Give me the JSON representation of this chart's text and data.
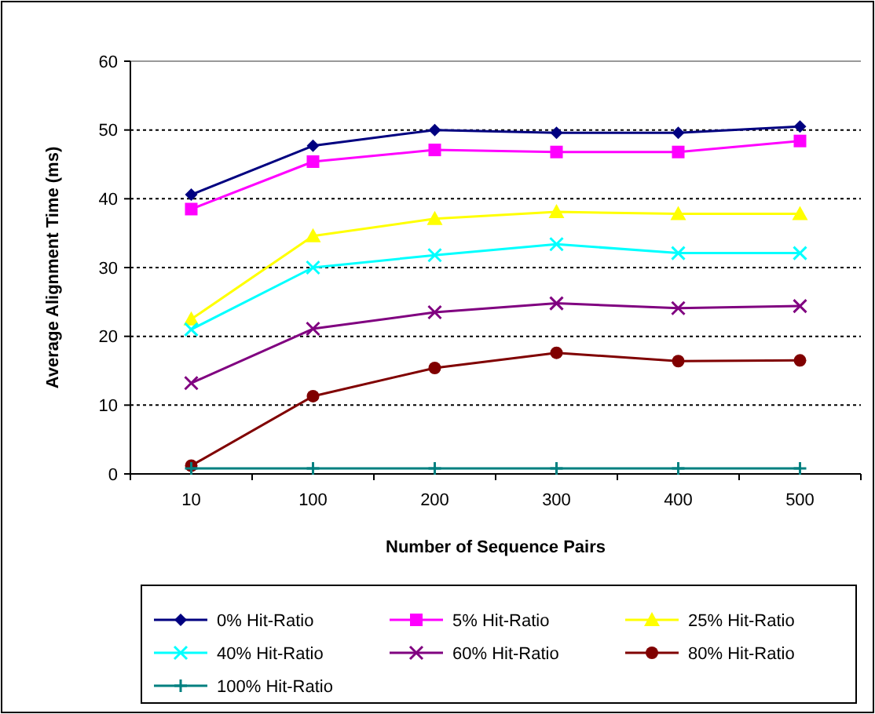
{
  "chart_data": {
    "type": "line",
    "xlabel": "Number of Sequence Pairs",
    "ylabel": "Average Alignment Time (ms)",
    "categories": [
      "10",
      "100",
      "200",
      "300",
      "400",
      "500"
    ],
    "ylim": [
      0,
      60
    ],
    "yticks": [
      0,
      10,
      20,
      30,
      40,
      50,
      60
    ],
    "grid": "y",
    "legend": "bottom",
    "series": [
      {
        "name": "0% Hit-Ratio",
        "color": "#000080",
        "marker": "diamond",
        "values": [
          40.6,
          47.7,
          50.0,
          49.6,
          49.6,
          50.5
        ]
      },
      {
        "name": "5% Hit-Ratio",
        "color": "#ff00ff",
        "marker": "square",
        "values": [
          38.5,
          45.4,
          47.1,
          46.8,
          46.8,
          48.4
        ]
      },
      {
        "name": "25% Hit-Ratio",
        "color": "#ffff00",
        "marker": "triangle",
        "values": [
          22.5,
          34.6,
          37.1,
          38.1,
          37.8,
          37.8
        ]
      },
      {
        "name": "40% Hit-Ratio",
        "color": "#00ffff",
        "marker": "cross",
        "values": [
          21.0,
          30.0,
          31.8,
          33.4,
          32.1,
          32.1
        ]
      },
      {
        "name": "60% Hit-Ratio",
        "color": "#800080",
        "marker": "cross",
        "values": [
          13.2,
          21.1,
          23.5,
          24.8,
          24.1,
          24.4
        ]
      },
      {
        "name": "80% Hit-Ratio",
        "color": "#800000",
        "marker": "circle",
        "values": [
          1.2,
          11.3,
          15.4,
          17.6,
          16.4,
          16.5
        ]
      },
      {
        "name": "100% Hit-Ratio",
        "color": "#008080",
        "marker": "plus",
        "values": [
          0.8,
          0.8,
          0.8,
          0.8,
          0.8,
          0.8
        ]
      }
    ]
  }
}
